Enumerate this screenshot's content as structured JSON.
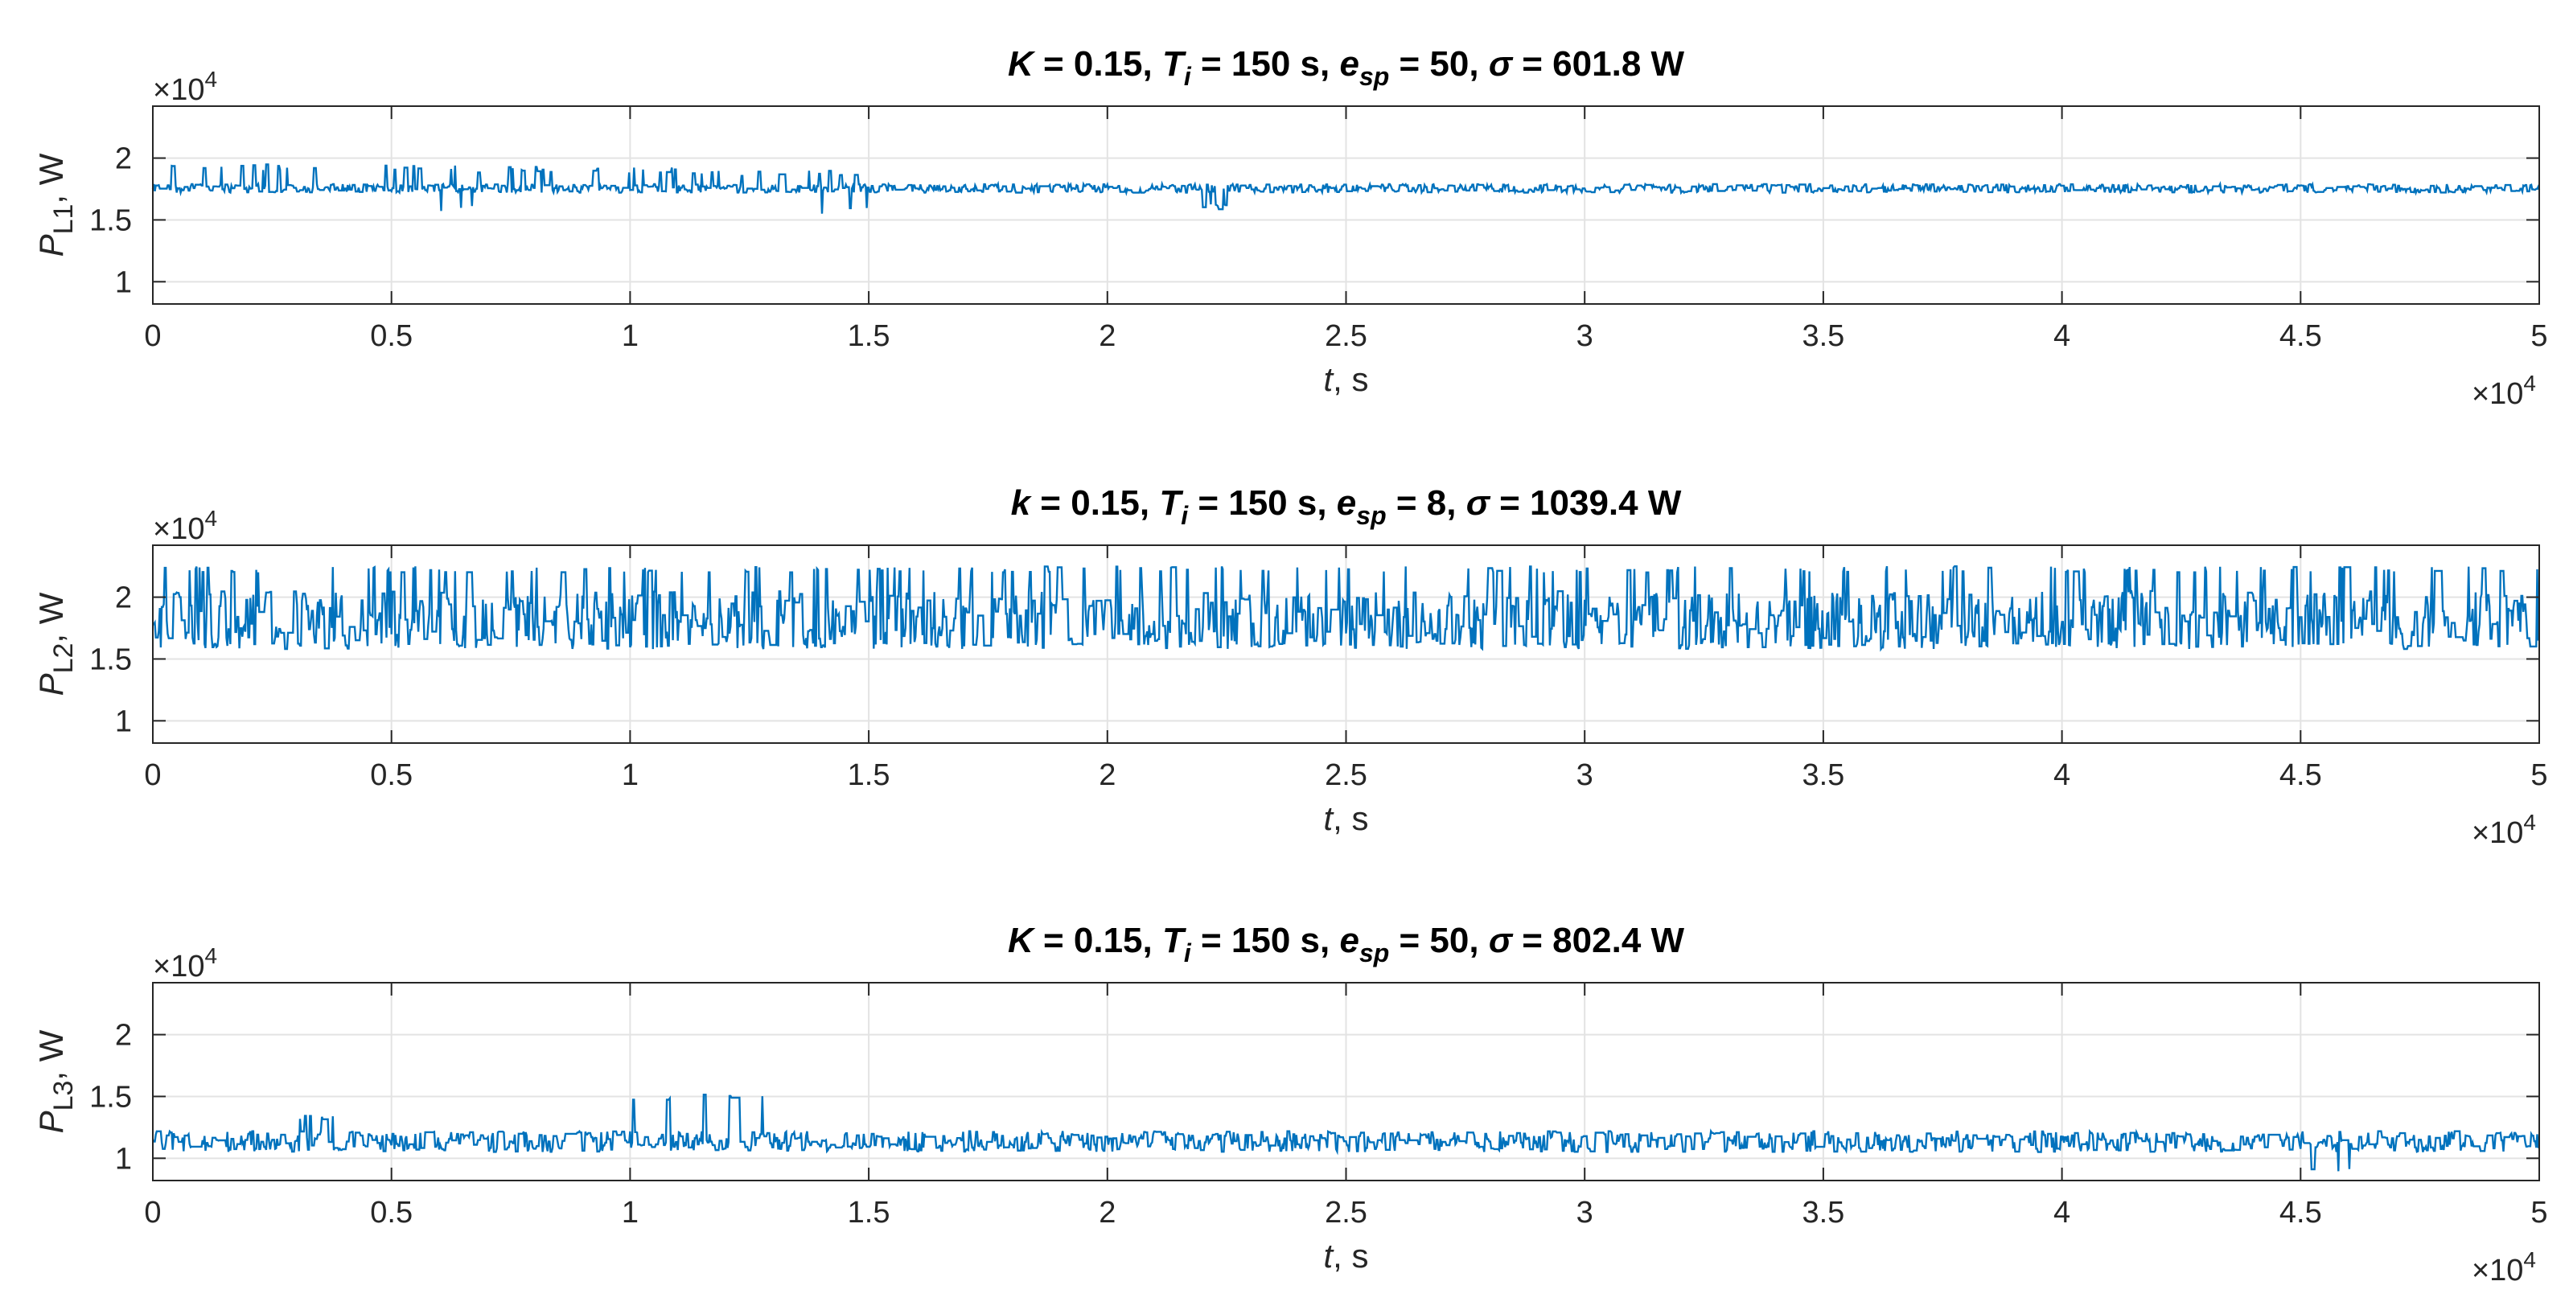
{
  "chart_data": [
    {
      "type": "line",
      "title": {
        "a": "K",
        "b": " = 0.15,  ",
        "c": "T",
        "d": "i",
        "e": " = 150 s,  ",
        "f": "e",
        "g": "sp",
        "h": " = 50,  ",
        "i": "σ",
        "j": " = 601.8 W"
      },
      "xlabel": {
        "var": "t",
        "unit": ", s"
      },
      "ylabel": {
        "var": "P",
        "sub": "L1",
        "unit": ", W"
      },
      "x_exponent": {
        "base": "×10",
        "power": "4"
      },
      "y_exponent": {
        "base": "×10",
        "power": "4"
      },
      "xlim": [
        0,
        5
      ],
      "ylim": [
        0.82,
        2.42
      ],
      "xticks": [
        0,
        0.5,
        1,
        1.5,
        2,
        2.5,
        3,
        3.5,
        4,
        4.5,
        5
      ],
      "xtick_labels": [
        "0",
        "0.5",
        "1",
        "1.5",
        "2",
        "2.5",
        "3",
        "3.5",
        "4",
        "4.5",
        "5"
      ],
      "yticks": [
        1,
        1.5,
        2
      ],
      "ytick_labels": [
        "1",
        "1.5",
        "2"
      ],
      "grid": true,
      "series": [
        {
          "color": "#0072BD",
          "base": 1.75,
          "band": [
            1.72,
            1.79
          ],
          "spikes_up": [
            {
              "x": [
                0,
                0.65
              ],
              "y": 1.95
            },
            {
              "x": [
                0.65,
                1.1
              ],
              "y": 1.93
            },
            {
              "x": [
                1.1,
                1.5
              ],
              "y": 1.9
            }
          ],
          "spikes_down": [
            {
              "x": [
                0.6,
                0.7
              ],
              "y": 1.57
            },
            {
              "x": [
                1.4,
                1.5
              ],
              "y": 1.55
            },
            {
              "x": [
                2.2,
                2.3
              ],
              "y": 1.58
            }
          ]
        }
      ]
    },
    {
      "type": "line",
      "title": {
        "a": "k",
        "b": " = 0.15,  ",
        "c": "T",
        "d": "i",
        "e": " = 150 s,  ",
        "f": "e",
        "g": "sp",
        "h": " = 8,  ",
        "i": "σ",
        "j": " = 1039.4 W"
      },
      "xlabel": {
        "var": "t",
        "unit": ", s"
      },
      "ylabel": {
        "var": "P",
        "sub": "L2",
        "unit": ", W"
      },
      "x_exponent": {
        "base": "×10",
        "power": "4"
      },
      "y_exponent": {
        "base": "×10",
        "power": "4"
      },
      "xlim": [
        0,
        5
      ],
      "ylim": [
        0.82,
        2.42
      ],
      "xticks": [
        0,
        0.5,
        1,
        1.5,
        2,
        2.5,
        3,
        3.5,
        4,
        4.5,
        5
      ],
      "xtick_labels": [
        "0",
        "0.5",
        "1",
        "1.5",
        "2",
        "2.5",
        "3",
        "3.5",
        "4",
        "4.5",
        "5"
      ],
      "yticks": [
        1,
        1.5,
        2
      ],
      "ytick_labels": [
        "1",
        "1.5",
        "2"
      ],
      "grid": true,
      "series": [
        {
          "color": "#0072BD",
          "base": 1.78,
          "band": [
            1.6,
            2.05
          ],
          "spikes_up": [
            {
              "x": [
                0,
                5
              ],
              "y": 2.25
            }
          ],
          "spikes_down": [
            {
              "x": [
                0,
                5
              ],
              "y": 1.58
            }
          ]
        }
      ]
    },
    {
      "type": "line",
      "title": {
        "a": "K",
        "b": " = 0.15,  ",
        "c": "T",
        "d": "i",
        "e": " = 150 s,  ",
        "f": "e",
        "g": "sp",
        "h": " = 50,  ",
        "i": "σ",
        "j": " = 802.4 W"
      },
      "xlabel": {
        "var": "t",
        "unit": ", s"
      },
      "ylabel": {
        "var": "P",
        "sub": "L3",
        "unit": ", W"
      },
      "x_exponent": {
        "base": "×10",
        "power": "4"
      },
      "y_exponent": {
        "base": "×10",
        "power": "4"
      },
      "xlim": [
        0,
        5
      ],
      "ylim": [
        0.82,
        2.42
      ],
      "xticks": [
        0,
        0.5,
        1,
        1.5,
        2,
        2.5,
        3,
        3.5,
        4,
        4.5,
        5
      ],
      "xtick_labels": [
        "0",
        "0.5",
        "1",
        "1.5",
        "2",
        "2.5",
        "3",
        "3.5",
        "4",
        "4.5",
        "5"
      ],
      "yticks": [
        1,
        1.5,
        2
      ],
      "ytick_labels": [
        "1",
        "1.5",
        "2"
      ],
      "grid": true,
      "series": [
        {
          "color": "#0072BD",
          "base": 1.15,
          "band": [
            1.05,
            1.22
          ],
          "spikes_up": [
            {
              "x": [
                1.0,
                1.3
              ],
              "y": 1.52
            },
            {
              "x": [
                0.3,
                0.4
              ],
              "y": 1.35
            }
          ],
          "spikes_down": [
            {
              "x": [
                4.5,
                4.65
              ],
              "y": 0.88
            }
          ]
        }
      ]
    }
  ]
}
